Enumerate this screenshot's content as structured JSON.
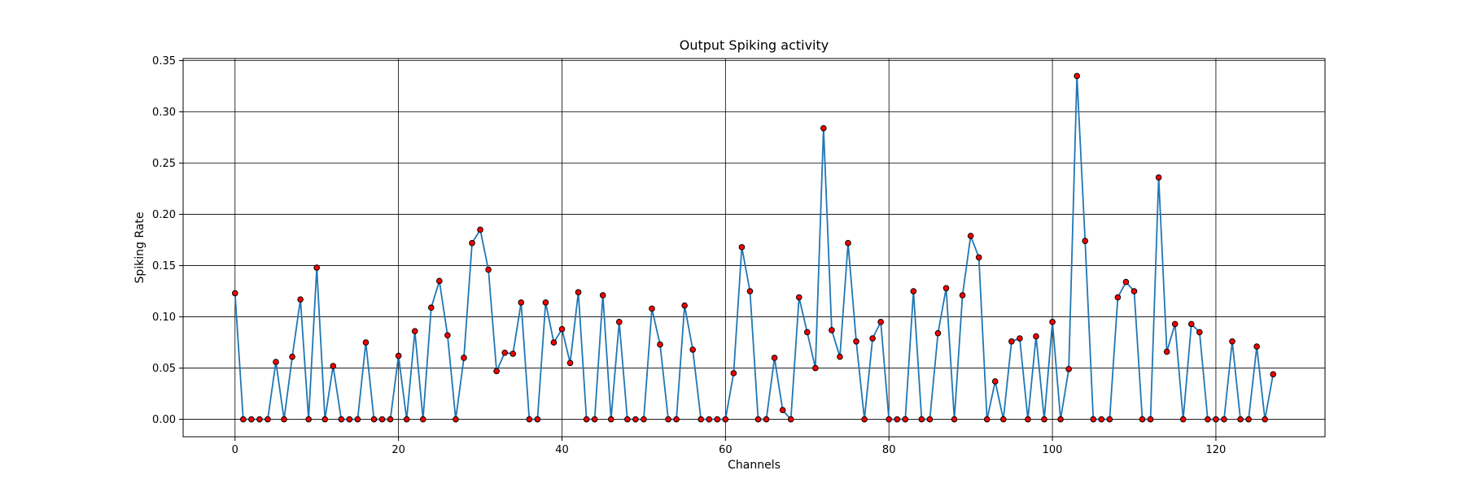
{
  "chart_data": {
    "type": "line",
    "title": "Output Spiking activity",
    "xlabel": "Channels",
    "ylabel": "Spiking Rate",
    "xlim": [
      -6.35,
      133.35
    ],
    "ylim": [
      -0.017,
      0.352
    ],
    "xticks": [
      0,
      20,
      40,
      60,
      80,
      100,
      120
    ],
    "yticks": [
      0.0,
      0.05,
      0.1,
      0.15,
      0.2,
      0.25,
      0.3,
      0.35
    ],
    "ytick_labels": [
      "0.00",
      "0.05",
      "0.10",
      "0.15",
      "0.20",
      "0.25",
      "0.30",
      "0.35"
    ],
    "grid": true,
    "line_color": "#1f77b4",
    "marker_color": "#ff0000",
    "marker_edge_color": "#000000",
    "series": [
      {
        "x": [
          0,
          1,
          2,
          3,
          4,
          5,
          6,
          7,
          8,
          9,
          10,
          11,
          12,
          13,
          14,
          15,
          16,
          17,
          18,
          19,
          20,
          21,
          22,
          23,
          24,
          25,
          26,
          27,
          28,
          29,
          30,
          31,
          32,
          33,
          34,
          35,
          36,
          37,
          38,
          39,
          40,
          41,
          42,
          43,
          44,
          45,
          46,
          47,
          48,
          49,
          50,
          51,
          52,
          53,
          54,
          55,
          56,
          57,
          58,
          59,
          60,
          61,
          62,
          63,
          64,
          65,
          66,
          67,
          68,
          69,
          70,
          71,
          72,
          73,
          74,
          75,
          76,
          77,
          78,
          79,
          80,
          81,
          82,
          83,
          84,
          85,
          86,
          87,
          88,
          89,
          90,
          91,
          92,
          93,
          94,
          95,
          96,
          97,
          98,
          99,
          100,
          101,
          102,
          103,
          104,
          105,
          106,
          107,
          108,
          109,
          110,
          111,
          112,
          113,
          114,
          115,
          116,
          117,
          118,
          119,
          120,
          121,
          122,
          123,
          124,
          125,
          126,
          127
        ],
        "values": [
          0.123,
          0,
          0,
          0,
          0,
          0.056,
          0,
          0.061,
          0.117,
          0,
          0.148,
          0,
          0.052,
          0,
          0,
          0,
          0.075,
          0,
          0,
          0,
          0.062,
          0,
          0.086,
          0,
          0.109,
          0.135,
          0.082,
          0,
          0.06,
          0.172,
          0.185,
          0.146,
          0.047,
          0.065,
          0.064,
          0.114,
          0,
          0,
          0.114,
          0.075,
          0.088,
          0.055,
          0.124,
          0,
          0,
          0.121,
          0,
          0.095,
          0,
          0,
          0,
          0.108,
          0.073,
          0,
          0,
          0.111,
          0.068,
          0,
          0,
          0,
          0,
          0.045,
          0.168,
          0.125,
          0,
          0,
          0.06,
          0.009,
          0,
          0.119,
          0.085,
          0.05,
          0.284,
          0.087,
          0.061,
          0.172,
          0.076,
          0,
          0.079,
          0.095,
          0,
          0,
          0,
          0.125,
          0,
          0,
          0.084,
          0.128,
          0,
          0.121,
          0.179,
          0.158,
          0,
          0.037,
          0,
          0.076,
          0.079,
          0,
          0.081,
          0,
          0.095,
          0,
          0.049,
          0.335,
          0.174,
          0,
          0,
          0,
          0.119,
          0.134,
          0.125,
          0,
          0,
          0.236,
          0.066,
          0.093,
          0,
          0.093,
          0.085,
          0,
          0,
          0,
          0.076,
          0,
          0,
          0.071,
          0,
          0.044
        ]
      }
    ]
  }
}
